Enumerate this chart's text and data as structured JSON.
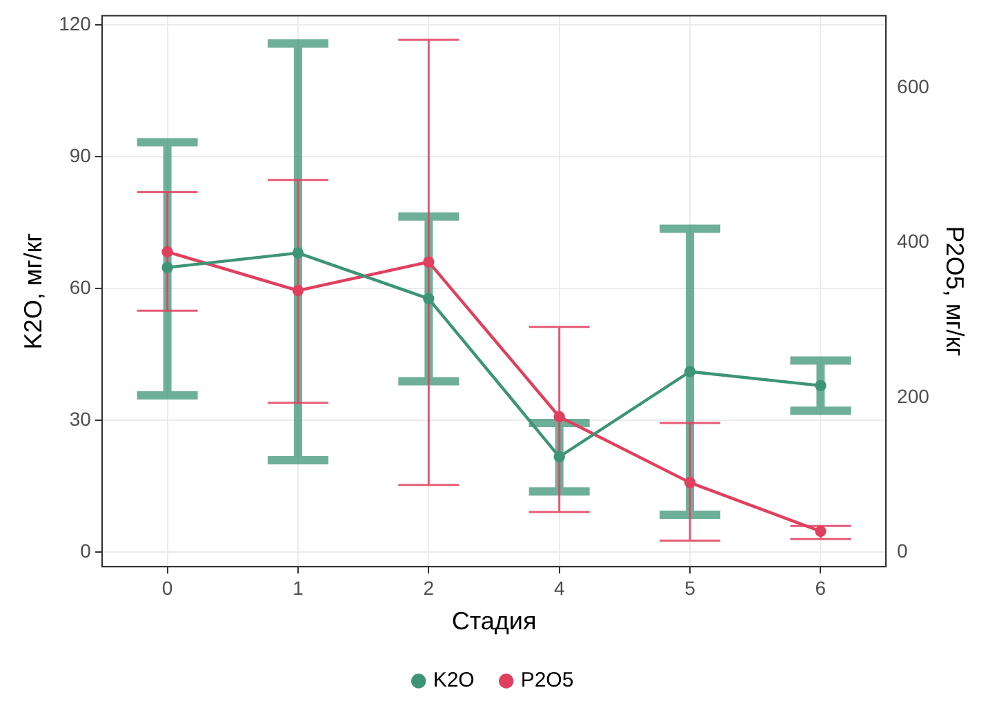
{
  "chart_data": {
    "type": "line",
    "xlabel": "Стадия",
    "ylabel": "K2O, мг/кг",
    "y2label": "P2O5, мг/кг",
    "categories": [
      "0",
      "1",
      "2",
      "4",
      "5",
      "6"
    ],
    "series": [
      {
        "name": "K2O",
        "color": "#3d9477",
        "values": [
          64.8,
          68.1,
          57.7,
          21.7,
          41.1,
          37.9
        ],
        "errors": [
          [
            35.7,
            93.3
          ],
          [
            20.9,
            115.8
          ],
          [
            38.9,
            76.4
          ],
          [
            13.8,
            29.4
          ],
          [
            8.5,
            73.6
          ],
          [
            32.2,
            43.6
          ]
        ]
      },
      {
        "name": "P2O5",
        "color": "#e0405e",
        "axis": "y2",
        "values": [
          388,
          338,
          375,
          175,
          90,
          27
        ],
        "errors": [
          [
            312,
            465
          ],
          [
            193,
            481
          ],
          [
            87,
            662
          ],
          [
            52,
            291
          ],
          [
            15,
            167
          ],
          [
            17,
            34
          ]
        ]
      }
    ],
    "ylim": [
      -3.3,
      122.1
    ],
    "yticks": [
      0,
      30,
      60,
      90,
      120
    ],
    "y2lim": [
      -18.6,
      693
    ],
    "y2ticks": [
      0,
      200,
      400,
      600
    ],
    "grid": true,
    "legend": "bottom",
    "marker": "circle",
    "line_style": "solid"
  }
}
